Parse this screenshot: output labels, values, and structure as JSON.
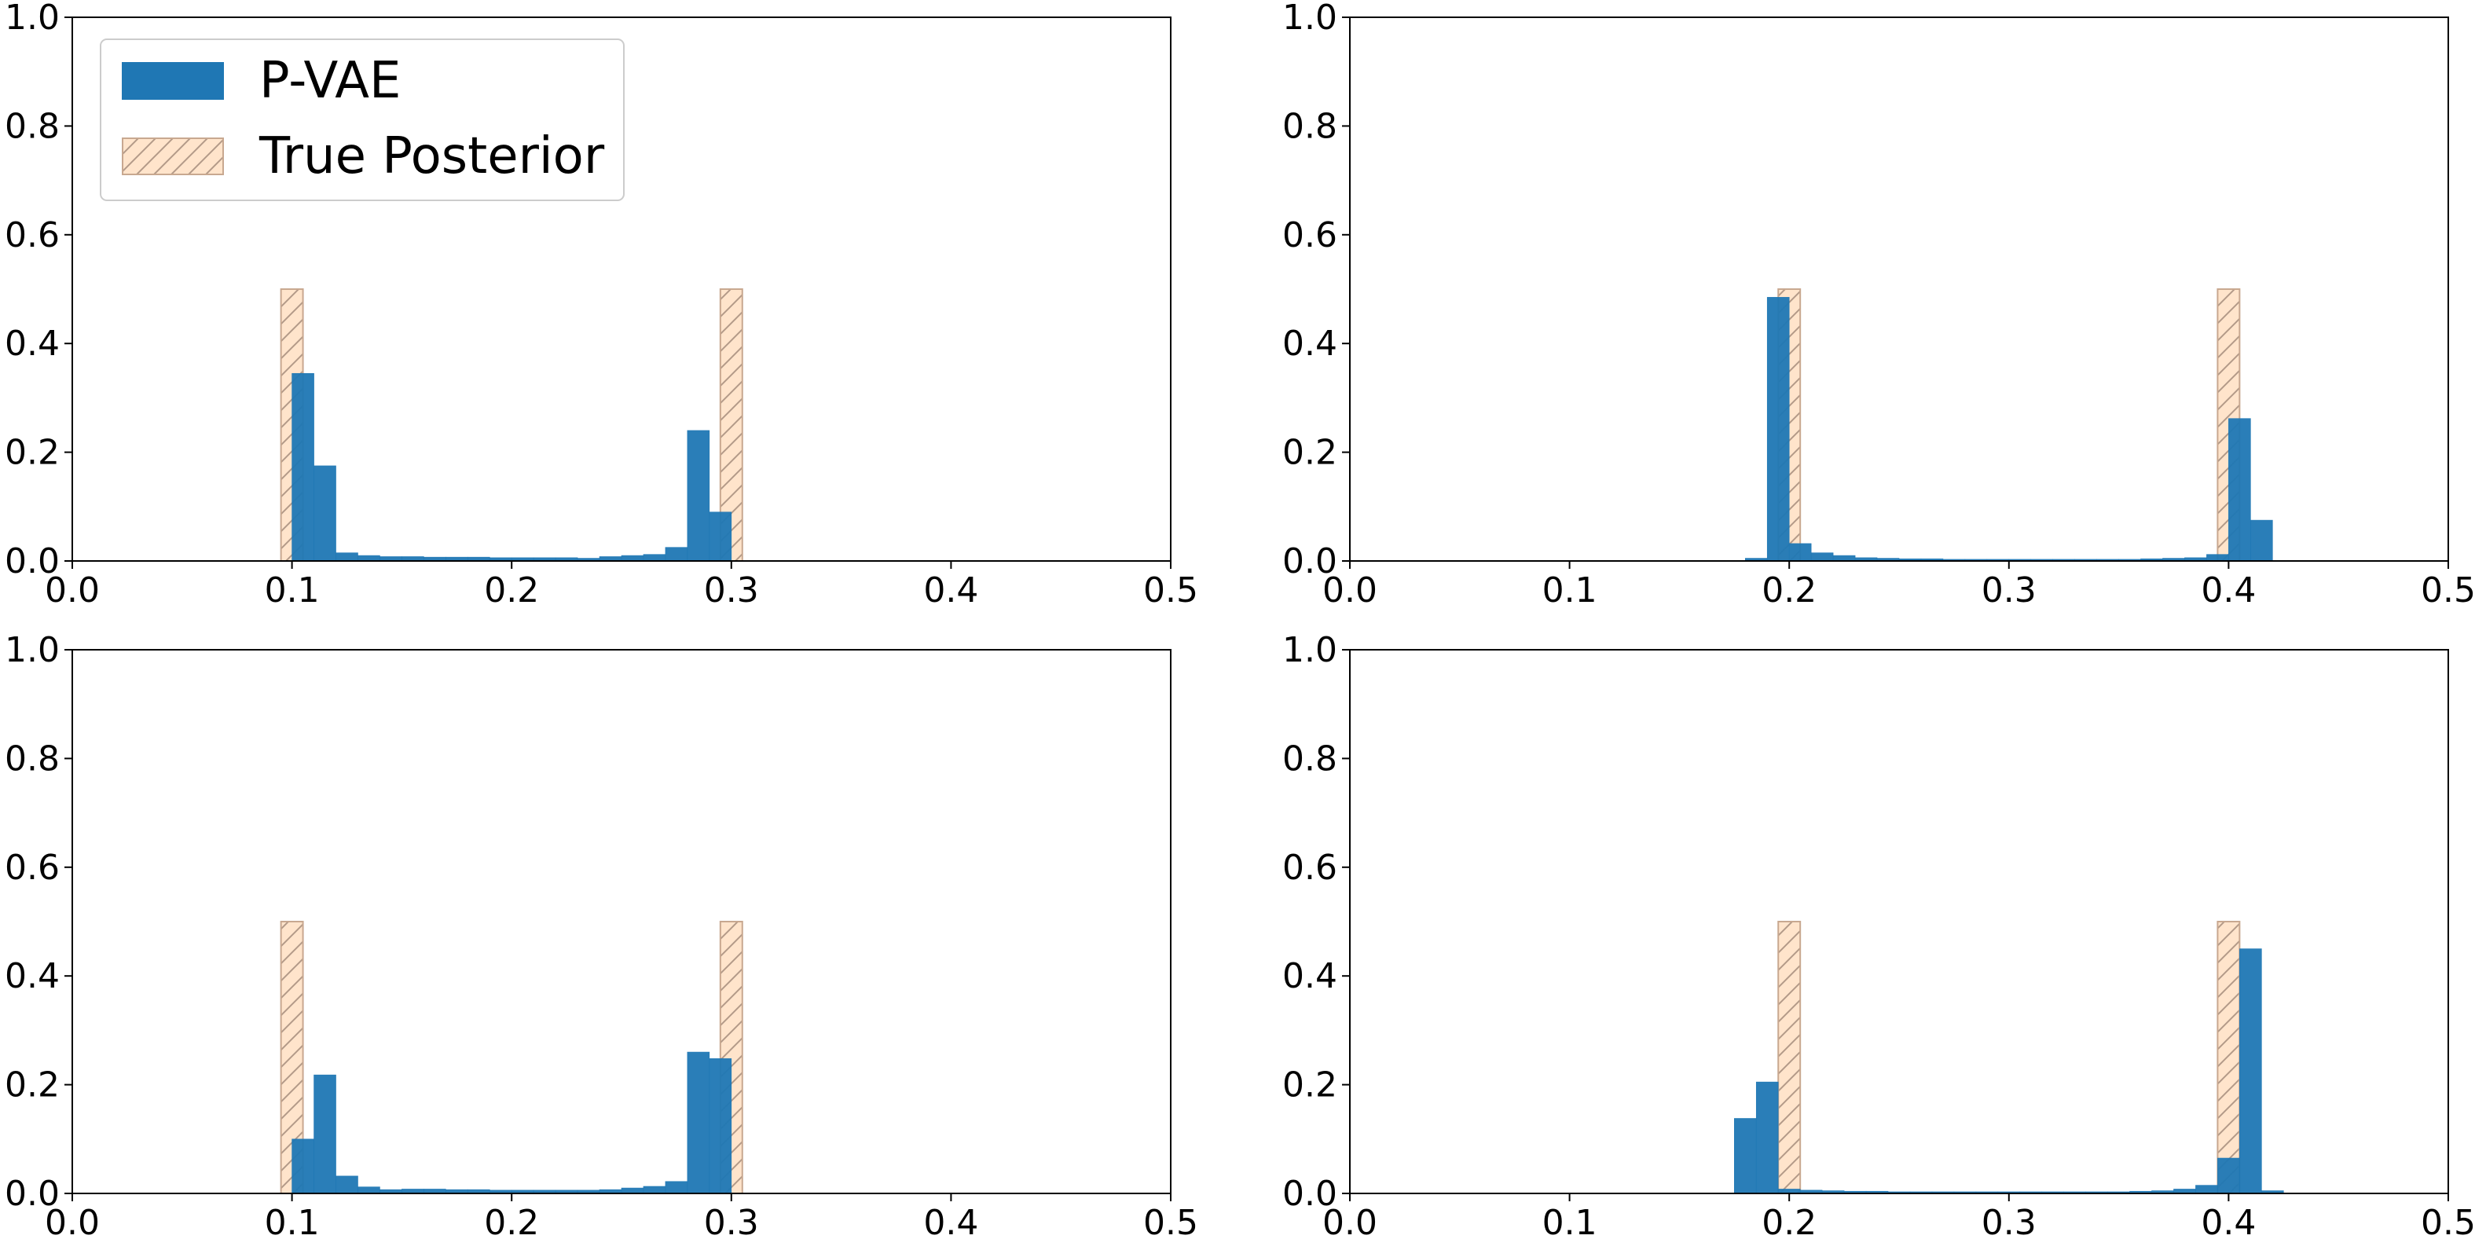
{
  "figure": {
    "legend": {
      "location": "upper-left of first subplot",
      "entries": [
        {
          "label": "P-VAE",
          "color": "#1f77b4",
          "style": "solid"
        },
        {
          "label": "True Posterior",
          "color": "#ffe4cb",
          "edge_color": "#c8a890",
          "style": "hatched"
        }
      ]
    }
  },
  "chart_data": [
    {
      "type": "bar",
      "panel": "top-left",
      "xlim": [
        0.0,
        0.5
      ],
      "ylim": [
        0.0,
        1.0
      ],
      "x_ticks": [
        "0.0",
        "0.1",
        "0.2",
        "0.3",
        "0.4",
        "0.5"
      ],
      "y_ticks": [
        "0.0",
        "0.2",
        "0.4",
        "0.6",
        "0.8",
        "1.0"
      ],
      "grid": false,
      "bin_width": 0.01,
      "series": [
        {
          "name": "P-VAE",
          "color": "#1f77b4",
          "bin_starts": [
            0.1,
            0.11,
            0.12,
            0.13,
            0.14,
            0.15,
            0.16,
            0.17,
            0.18,
            0.19,
            0.2,
            0.21,
            0.22,
            0.23,
            0.24,
            0.25,
            0.26,
            0.27,
            0.28,
            0.29
          ],
          "values": [
            0.345,
            0.175,
            0.015,
            0.01,
            0.008,
            0.008,
            0.007,
            0.007,
            0.007,
            0.006,
            0.006,
            0.006,
            0.006,
            0.005,
            0.008,
            0.01,
            0.012,
            0.025,
            0.24,
            0.09
          ]
        },
        {
          "name": "True Posterior",
          "color": "#ffe4cb",
          "bin_starts": [
            0.095,
            0.295
          ],
          "values": [
            0.5,
            0.5
          ]
        }
      ]
    },
    {
      "type": "bar",
      "panel": "top-right",
      "xlim": [
        0.0,
        0.5
      ],
      "ylim": [
        0.0,
        1.0
      ],
      "x_ticks": [
        "0.0",
        "0.1",
        "0.2",
        "0.3",
        "0.4",
        "0.5"
      ],
      "y_ticks": [
        "0.0",
        "0.2",
        "0.4",
        "0.6",
        "0.8",
        "1.0"
      ],
      "grid": false,
      "bin_width": 0.01,
      "series": [
        {
          "name": "P-VAE",
          "color": "#1f77b4",
          "bin_starts": [
            0.18,
            0.19,
            0.2,
            0.21,
            0.22,
            0.23,
            0.24,
            0.25,
            0.26,
            0.27,
            0.28,
            0.29,
            0.3,
            0.31,
            0.32,
            0.33,
            0.34,
            0.35,
            0.36,
            0.37,
            0.38,
            0.39,
            0.4,
            0.41
          ],
          "values": [
            0.005,
            0.485,
            0.032,
            0.015,
            0.01,
            0.006,
            0.005,
            0.004,
            0.004,
            0.003,
            0.003,
            0.003,
            0.003,
            0.003,
            0.003,
            0.003,
            0.003,
            0.003,
            0.004,
            0.005,
            0.006,
            0.012,
            0.262,
            0.075
          ]
        },
        {
          "name": "True Posterior",
          "color": "#ffe4cb",
          "bin_starts": [
            0.195,
            0.395
          ],
          "values": [
            0.5,
            0.5
          ]
        }
      ]
    },
    {
      "type": "bar",
      "panel": "bottom-left",
      "xlim": [
        0.0,
        0.5
      ],
      "ylim": [
        0.0,
        1.0
      ],
      "x_ticks": [
        "0.0",
        "0.1",
        "0.2",
        "0.3",
        "0.4",
        "0.5"
      ],
      "y_ticks": [
        "0.0",
        "0.2",
        "0.4",
        "0.6",
        "0.8",
        "1.0"
      ],
      "grid": false,
      "bin_width": 0.01,
      "series": [
        {
          "name": "P-VAE",
          "color": "#1f77b4",
          "bin_starts": [
            0.1,
            0.11,
            0.12,
            0.13,
            0.14,
            0.15,
            0.16,
            0.17,
            0.18,
            0.19,
            0.2,
            0.21,
            0.22,
            0.23,
            0.24,
            0.25,
            0.26,
            0.27,
            0.28,
            0.29
          ],
          "values": [
            0.1,
            0.218,
            0.032,
            0.012,
            0.007,
            0.008,
            0.008,
            0.007,
            0.007,
            0.006,
            0.006,
            0.006,
            0.006,
            0.006,
            0.007,
            0.01,
            0.013,
            0.022,
            0.26,
            0.248
          ]
        },
        {
          "name": "True Posterior",
          "color": "#ffe4cb",
          "bin_starts": [
            0.095,
            0.295
          ],
          "values": [
            0.5,
            0.5
          ]
        }
      ]
    },
    {
      "type": "bar",
      "panel": "bottom-right",
      "xlim": [
        0.0,
        0.5
      ],
      "ylim": [
        0.0,
        1.0
      ],
      "x_ticks": [
        "0.0",
        "0.1",
        "0.2",
        "0.3",
        "0.4",
        "0.5"
      ],
      "y_ticks": [
        "0.0",
        "0.2",
        "0.4",
        "0.6",
        "0.8",
        "1.0"
      ],
      "grid": false,
      "bin_width": 0.01,
      "series": [
        {
          "name": "P-VAE",
          "color": "#1f77b4",
          "bin_starts": [
            0.175,
            0.185,
            0.195,
            0.205,
            0.215,
            0.225,
            0.235,
            0.245,
            0.255,
            0.265,
            0.275,
            0.285,
            0.295,
            0.305,
            0.315,
            0.325,
            0.335,
            0.345,
            0.355,
            0.365,
            0.375,
            0.385,
            0.395,
            0.405,
            0.415
          ],
          "values": [
            0.138,
            0.205,
            0.008,
            0.006,
            0.005,
            0.004,
            0.004,
            0.003,
            0.003,
            0.003,
            0.003,
            0.003,
            0.003,
            0.003,
            0.003,
            0.003,
            0.003,
            0.003,
            0.004,
            0.005,
            0.008,
            0.015,
            0.065,
            0.45,
            0.005
          ]
        },
        {
          "name": "True Posterior",
          "color": "#ffe4cb",
          "bin_starts": [
            0.195,
            0.395
          ],
          "values": [
            0.5,
            0.5
          ]
        }
      ]
    }
  ]
}
